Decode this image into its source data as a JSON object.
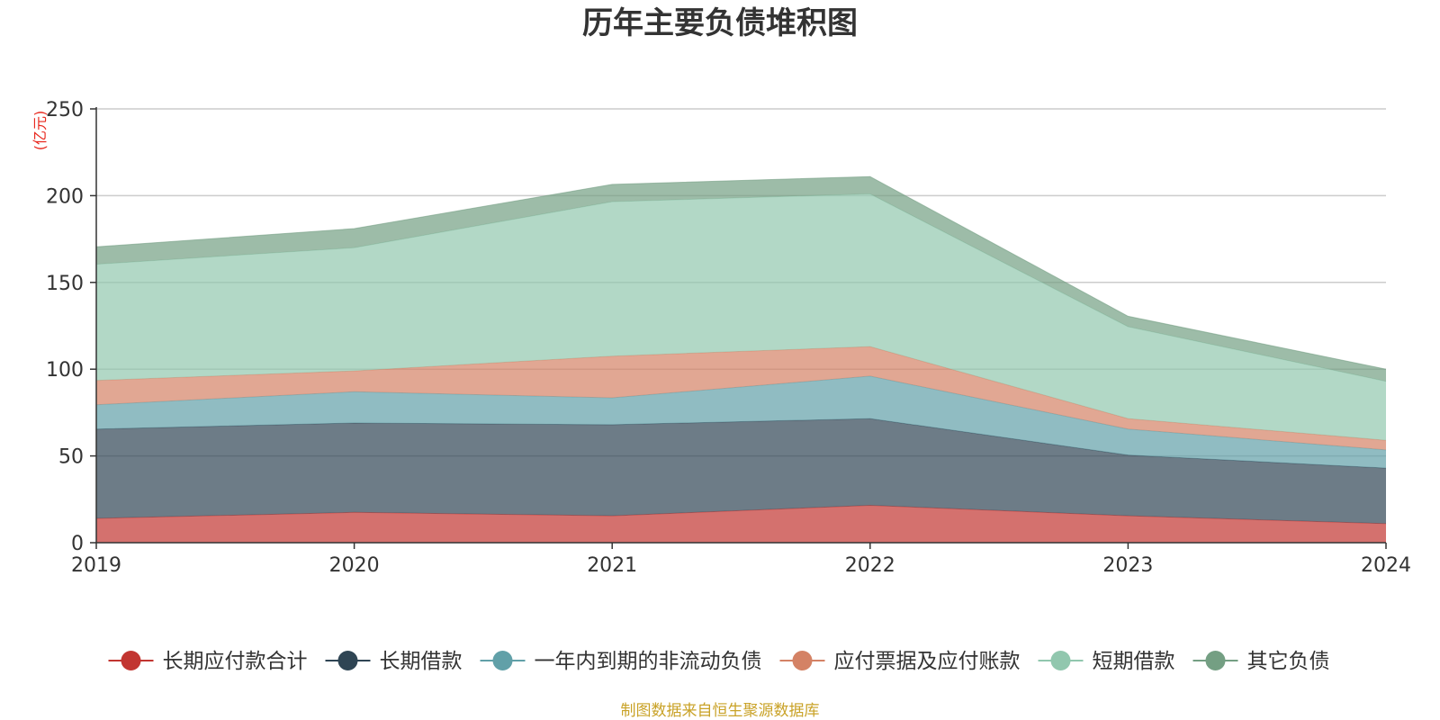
{
  "chart_data": {
    "type": "area",
    "stacked": true,
    "title": "历年主要负债堆积图",
    "unit_label": "(亿元)",
    "x": [
      "2019",
      "2020",
      "2021",
      "2022",
      "2023",
      "2024"
    ],
    "y_ticks": [
      "0",
      "50",
      "100",
      "150",
      "200",
      "250"
    ],
    "ylim": [
      0,
      250
    ],
    "grid": true,
    "legend_position": "bottom",
    "series": [
      {
        "name": "长期应付款合计",
        "color": "#c23531",
        "values": [
          14,
          17.5,
          15.5,
          21.5,
          15.5,
          11
        ]
      },
      {
        "name": "长期借款",
        "color": "#2f4554",
        "values": [
          51.5,
          51.5,
          52.5,
          50,
          35,
          32
        ]
      },
      {
        "name": "一年内到期的非流动负债",
        "color": "#61a0a8",
        "values": [
          14,
          18,
          15.5,
          24.5,
          15,
          10.5
        ]
      },
      {
        "name": "应付票据及应付账款",
        "color": "#d48265",
        "values": [
          14,
          12,
          24,
          17,
          6,
          5.5
        ]
      },
      {
        "name": "短期借款",
        "color": "#91c7ae",
        "values": [
          67,
          71,
          89,
          88,
          53,
          34
        ]
      },
      {
        "name": "其它负债",
        "color": "#749f83",
        "values": [
          10,
          11,
          10,
          10,
          6,
          7
        ]
      }
    ]
  },
  "source_note": "制图数据来自恒生聚源数据库"
}
